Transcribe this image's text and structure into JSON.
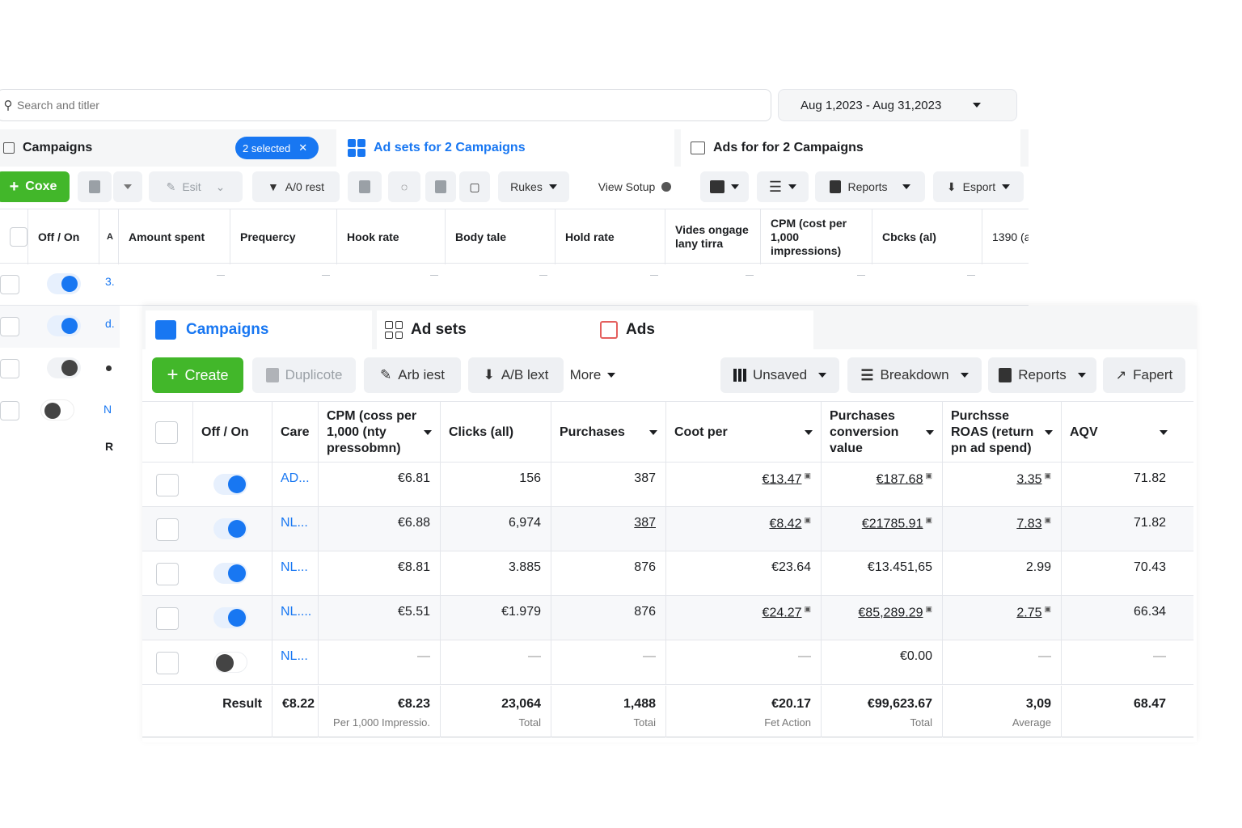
{
  "back": {
    "search": {
      "placeholder": "Search and titler"
    },
    "date_range": "Aug 1,2023 - Aug 31,2023",
    "tabs": {
      "campaigns": "Campaigns",
      "selected_chip": "2 selected",
      "adsets": "Ad sets for 2 Campaigns",
      "ads": "Ads for for 2 Campaigns"
    },
    "toolbar": {
      "create": "Coxe",
      "edit": "Esit",
      "ab_test": "A/0 rest",
      "rules": "Rukes",
      "view_setup": "View Sotup",
      "reports": "Reports",
      "export": "Esport"
    },
    "columns": [
      "Off / On",
      "A",
      "Amount spent",
      "Prequercy",
      "Hook rate",
      "Body tale",
      "Hold rate",
      "Vides ongage lany tirra",
      "CPM (cost per 1,000 impressions)",
      "Cbcks (al)",
      "1390 (a"
    ],
    "row_names": [
      "3.",
      "d.",
      "",
      "N",
      "R"
    ]
  },
  "front": {
    "tabs": {
      "campaigns": "Campaigns",
      "adsets": "Ad sets",
      "ads": "Ads"
    },
    "toolbar": {
      "create": "Create",
      "duplicate": "Duplicote",
      "edit": "Arb iest",
      "ab_test": "A/B lext",
      "more": "More",
      "unsaved": "Unsaved",
      "breakdown": "Breakdown",
      "reports": "Reports",
      "export": "Fapert"
    },
    "columns": {
      "onoff": "Off / On",
      "name": "Care",
      "cpm": "CPM (coss per 1,000 (nty pressobmn)",
      "clicks": "Clicks (all)",
      "purchases": "Purchases",
      "cost_per": "Coot per",
      "conv_value": "Purchases conversion value",
      "roas": "Purchsse ROAS (return pn ad spend)",
      "aov": "AQV"
    },
    "rows": [
      {
        "on": true,
        "name": "AD...",
        "cpm": "€6.81",
        "clicks": "156",
        "purchases": "387",
        "cost_per": "€13.47",
        "conv_value": "€187.68",
        "roas": "3.35",
        "aov": "71.82"
      },
      {
        "on": true,
        "name": "NL...",
        "cpm": "€6.88",
        "clicks": "6,974",
        "purchases": "387",
        "cost_per": "€8.42",
        "conv_value": "€21785.91",
        "roas": "7.83",
        "aov": "71.82"
      },
      {
        "on": true,
        "name": "NL...",
        "cpm": "€8.81",
        "clicks": "3.885",
        "purchases": "876",
        "cost_per": "€23.64",
        "conv_value": "€13.451,65",
        "roas": "2.99",
        "aov": "70.43"
      },
      {
        "on": true,
        "name": "NL....",
        "cpm": "€5.51",
        "clicks": "€1.979",
        "purchases": "876",
        "cost_per": "€24.27",
        "conv_value": "€85,289.29",
        "roas": "2.75",
        "aov": "66.34"
      },
      {
        "on": false,
        "name": "NL...",
        "cpm": "—",
        "clicks": "—",
        "purchases": "—",
        "cost_per": "—",
        "conv_value": "€0.00",
        "roas": "—",
        "aov": "—"
      }
    ],
    "totals": {
      "label": "Result",
      "name": "€8.22",
      "cpm": "€8.23",
      "cpm_sub": "Per 1,000 Impressio.",
      "clicks": "23,064",
      "clicks_sub": "Total",
      "purchases": "1,488",
      "purchases_sub": "Totai",
      "cost_per": "€20.17",
      "cost_per_sub": "Fet Action",
      "conv_value": "€99,623.67",
      "conv_value_sub": "Total",
      "roas": "3,09",
      "roas_sub": "Average",
      "aov": "68.47"
    }
  },
  "colors": {
    "accent": "#1877f2",
    "create_green": "#42b72a",
    "border": "#e4e6eb"
  }
}
